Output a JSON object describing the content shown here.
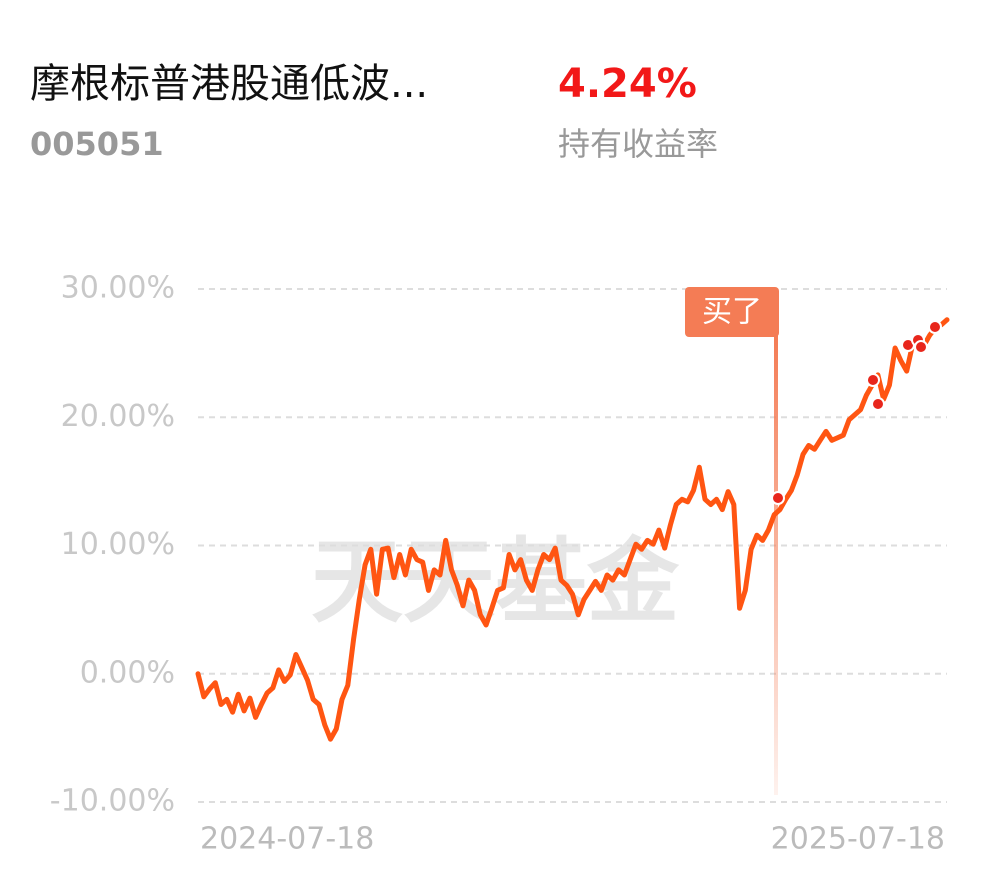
{
  "header": {
    "title": "摩根标普港股通低波...",
    "code": "005051",
    "return_value": "4.24%",
    "return_label": "持有收益率",
    "watermark": "天天基金"
  },
  "chart_data": {
    "type": "line",
    "annotations": [
      "买了"
    ],
    "categories": [
      "2024-07-18",
      null,
      null,
      null,
      null,
      null,
      null,
      null,
      null,
      null,
      null,
      null,
      null,
      null,
      null,
      null,
      null,
      null,
      null,
      null,
      null,
      null,
      null,
      null,
      null,
      null,
      null,
      null,
      null,
      null,
      null,
      null,
      null,
      null,
      null,
      null,
      null,
      null,
      null,
      null,
      null,
      null,
      null,
      null,
      null,
      null,
      null,
      null,
      null,
      null,
      null,
      null,
      null,
      null,
      null,
      null,
      null,
      null,
      null,
      null,
      null,
      null,
      null,
      null,
      null,
      null,
      null,
      null,
      null,
      null,
      null,
      null,
      null,
      null,
      null,
      null,
      null,
      null,
      null,
      null,
      null,
      null,
      null,
      null,
      null,
      null,
      null,
      null,
      null,
      null,
      null,
      null,
      null,
      null,
      null,
      null,
      null,
      null,
      null,
      null,
      null,
      null,
      null,
      null,
      null,
      null,
      null,
      null,
      null,
      null,
      null,
      null,
      null,
      null,
      null,
      null,
      null,
      null,
      null,
      null,
      null,
      null,
      null,
      null,
      null,
      null,
      null,
      null,
      null,
      null,
      "2025-07-18"
    ],
    "series": [
      {
        "color": "#ff5512",
        "values": [
          0,
          -1.8,
          -1.2,
          -0.7,
          -2.4,
          -2.0,
          -3.0,
          -1.6,
          -2.9,
          -1.9,
          -3.4,
          -2.4,
          -1.5,
          -1.1,
          0.3,
          -0.6,
          -0.1,
          1.5,
          0.5,
          -0.5,
          -2.0,
          -2.4,
          -4.0,
          -5.1,
          -4.3,
          -2.0,
          -0.9,
          2.7,
          5.8,
          8.5,
          9.7,
          6.2,
          9.7,
          9.8,
          7.5,
          9.3,
          7.7,
          9.7,
          8.9,
          8.7,
          6.5,
          8.1,
          7.7,
          10.4,
          8.1,
          6.9,
          5.3,
          7.3,
          6.5,
          4.6,
          3.8,
          5.1,
          6.5,
          6.7,
          9.3,
          8.1,
          8.9,
          7.3,
          6.5,
          8.1,
          9.3,
          8.9,
          9.8,
          7.3,
          6.9,
          6.2,
          4.6,
          5.8,
          6.5,
          7.2,
          6.5,
          7.7,
          7.3,
          8.1,
          7.7,
          8.9,
          10.1,
          9.7,
          10.4,
          10.1,
          11.2,
          9.8,
          11.6,
          13.2,
          13.6,
          13.4,
          14.3,
          16.1,
          13.6,
          13.2,
          13.6,
          12.8,
          14.2,
          13.2,
          5.1,
          6.5,
          9.7,
          10.8,
          10.4,
          11.2,
          12.4,
          12.8,
          13.6,
          14.3,
          15.5,
          17.1,
          17.8,
          17.5,
          18.2,
          18.9,
          18.2,
          18.4,
          18.6,
          19.8,
          20.2,
          20.6,
          21.7,
          22.5,
          23.3,
          21.4,
          22.5,
          25.4,
          24.4,
          23.6,
          25.6,
          25.9,
          25.6,
          26.4,
          27.0,
          27.2,
          27.6
        ]
      }
    ],
    "ylim": [
      -10,
      30
    ],
    "yticks": [
      {
        "value": 30,
        "label": "30.00%"
      },
      {
        "value": 20,
        "label": "20.00%"
      },
      {
        "value": 10,
        "label": "10.00%"
      },
      {
        "value": 0,
        "label": "0.00%"
      },
      {
        "value": -10,
        "label": "-10.00%"
      }
    ],
    "grid": true
  }
}
